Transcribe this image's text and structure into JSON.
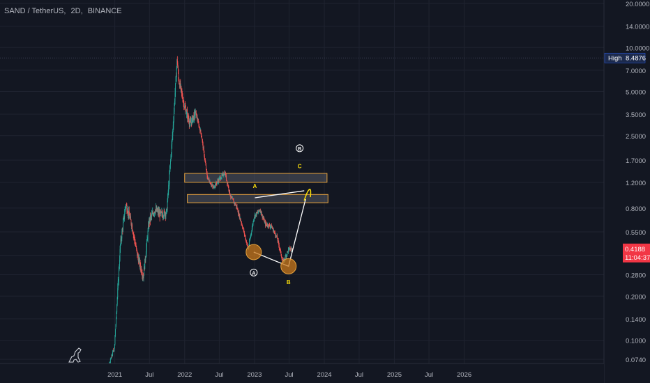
{
  "symbol_title": {
    "symbol": "SAND / TetherUS,",
    "interval": "2D,",
    "exchange": "BINANCE"
  },
  "colors": {
    "background": "#131722",
    "up_candle": "#26a69a",
    "down_candle": "#ef5350",
    "axis_text": "#b2b5be",
    "zone_border": "#e8a33d",
    "annotation_line": "#ffffff",
    "label_yellow": "#f5d90a",
    "circle_fill": "#c9781b",
    "high_badge": "#1c2a4d",
    "price_badge": "#f23645"
  },
  "chart_data": {
    "type": "candlestick",
    "scale": "log",
    "ylim": [
      0.065,
      21
    ],
    "y_ticks": [
      "20.0000",
      "14.0000",
      "10.0000",
      "7.0000",
      "5.0000",
      "3.5000",
      "2.5000",
      "1.7000",
      "1.2000",
      "0.8000",
      "0.5500",
      "0.3800",
      "0.2800",
      "0.2000",
      "0.1400",
      "0.1000",
      "0.0740"
    ],
    "y_tick_values": [
      20,
      14,
      10,
      7,
      5,
      3.5,
      2.5,
      1.7,
      1.2,
      0.8,
      0.55,
      0.38,
      0.28,
      0.2,
      0.14,
      0.1,
      0.074
    ],
    "x_ticks": [
      "2021",
      "Jul",
      "2022",
      "Jul",
      "2023",
      "Jul",
      "2024",
      "Jul",
      "2025",
      "Jul",
      "2026"
    ],
    "x_tick_dates": [
      "2021-01",
      "2021-07",
      "2022-01",
      "2022-07",
      "2023-01",
      "2023-07",
      "2024-01",
      "2024-07",
      "2025-01",
      "2025-07",
      "2026-01"
    ],
    "price_path": [
      [
        "2020-08",
        0.055
      ],
      [
        "2020-10",
        0.05
      ],
      [
        "2020-12",
        0.065
      ],
      [
        "2021-01",
        0.09
      ],
      [
        "2021-02",
        0.45
      ],
      [
        "2021-03",
        0.85
      ],
      [
        "2021-04",
        0.62
      ],
      [
        "2021-05",
        0.38
      ],
      [
        "2021-06",
        0.27
      ],
      [
        "2021-07",
        0.65
      ],
      [
        "2021-08",
        0.78
      ],
      [
        "2021-09",
        0.72
      ],
      [
        "2021-10",
        0.75
      ],
      [
        "2021-11",
        2.6
      ],
      [
        "2021-11-25",
        8.4876
      ],
      [
        "2021-12",
        6.2
      ],
      [
        "2022-01",
        4.0
      ],
      [
        "2022-02",
        3.0
      ],
      [
        "2022-03",
        3.6
      ],
      [
        "2022-04",
        2.5
      ],
      [
        "2022-05",
        1.3
      ],
      [
        "2022-06",
        1.1
      ],
      [
        "2022-07",
        1.25
      ],
      [
        "2022-08",
        1.4
      ],
      [
        "2022-09",
        0.95
      ],
      [
        "2022-10",
        0.82
      ],
      [
        "2022-11",
        0.6
      ],
      [
        "2022-12",
        0.42
      ],
      [
        "2023-01",
        0.7
      ],
      [
        "2023-02",
        0.78
      ],
      [
        "2023-03",
        0.62
      ],
      [
        "2023-04",
        0.6
      ],
      [
        "2023-05",
        0.5
      ],
      [
        "2023-06",
        0.34
      ],
      [
        "2023-07",
        0.42
      ],
      [
        "2023-07-20",
        0.4188
      ]
    ],
    "high": {
      "label": "High",
      "value": "8.4876"
    },
    "last_price": {
      "value": "0.4188",
      "countdown": "11:04:37"
    },
    "zones": [
      {
        "from": "2022-01-01",
        "to": "2024-01-15",
        "low": 1.2,
        "high": 1.38
      },
      {
        "from": "2022-01-15",
        "to": "2024-01-20",
        "low": 0.87,
        "high": 0.99
      }
    ],
    "annotation_lines": [
      [
        [
          "2022-12-28",
          0.4
        ],
        [
          "2023-06-28",
          0.32
        ],
        [
          "2023-09-25",
          0.92
        ]
      ],
      [
        [
          "2023-01-03",
          0.94
        ],
        [
          "2023-09-18",
          1.05
        ]
      ]
    ],
    "swing_curve": [
      [
        "2023-09-18",
        0.9
      ],
      [
        "2023-10-03",
        1.04
      ],
      [
        "2023-10-14",
        1.07
      ],
      [
        "2023-10-20",
        0.95
      ]
    ],
    "circles": [
      {
        "date": "2022-12-28",
        "price": 0.4
      },
      {
        "date": "2023-06-28",
        "price": 0.32
      }
    ],
    "labels": [
      {
        "text": "A",
        "date": "2023-01-03",
        "price": 1.13,
        "style": "yellow"
      },
      {
        "text": "C",
        "date": "2023-08-25",
        "price": 1.55,
        "style": "yellow"
      },
      {
        "text": "B",
        "date": "2023-06-28",
        "price": 0.25,
        "style": "yellow"
      },
      {
        "text": "A",
        "date": "2022-12-28",
        "price": 0.29,
        "style": "circled"
      },
      {
        "text": "B",
        "date": "2023-08-25",
        "price": 2.05,
        "style": "circled"
      }
    ]
  }
}
